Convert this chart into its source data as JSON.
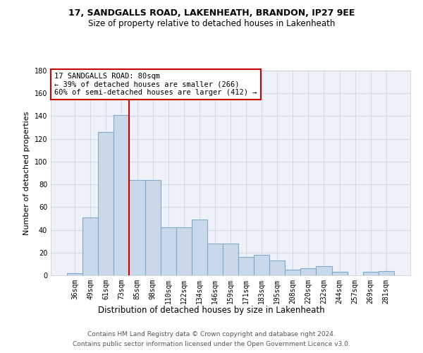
{
  "title1": "17, SANDGALLS ROAD, LAKENHEATH, BRANDON, IP27 9EE",
  "title2": "Size of property relative to detached houses in Lakenheath",
  "xlabel": "Distribution of detached houses by size in Lakenheath",
  "ylabel": "Number of detached properties",
  "categories": [
    "36sqm",
    "49sqm",
    "61sqm",
    "73sqm",
    "85sqm",
    "98sqm",
    "110sqm",
    "122sqm",
    "134sqm",
    "146sqm",
    "159sqm",
    "171sqm",
    "183sqm",
    "195sqm",
    "208sqm",
    "220sqm",
    "232sqm",
    "244sqm",
    "257sqm",
    "269sqm",
    "281sqm"
  ],
  "values": [
    2,
    51,
    126,
    141,
    84,
    84,
    42,
    42,
    49,
    28,
    28,
    16,
    18,
    13,
    5,
    6,
    8,
    3,
    0,
    3,
    4
  ],
  "bar_color": "#c9d9ea",
  "bar_edge_color": "#7fa8c9",
  "vline_index": 3.5,
  "vline_color": "#cc0000",
  "annotation_text": "17 SANDGALLS ROAD: 80sqm\n← 39% of detached houses are smaller (266)\n60% of semi-detached houses are larger (412) →",
  "annotation_box_color": "#ffffff",
  "annotation_box_edge": "#cc0000",
  "grid_color": "#d0d8e8",
  "background_color": "#eef2f8",
  "ylim": [
    0,
    180
  ],
  "yticks": [
    0,
    20,
    40,
    60,
    80,
    100,
    120,
    140,
    160,
    180
  ],
  "footer1": "Contains HM Land Registry data © Crown copyright and database right 2024.",
  "footer2": "Contains public sector information licensed under the Open Government Licence v3.0."
}
